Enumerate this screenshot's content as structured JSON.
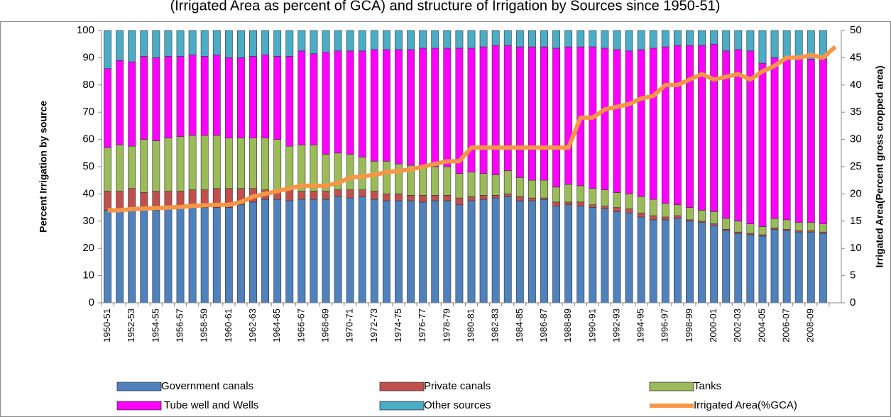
{
  "chart_data": {
    "type": "stacked_bar_line",
    "title": "(Irrigated Area as percent of GCA) and structure of Irrigation by Sources since 1950-51)",
    "y_label": "Percent Irrigation by source",
    "y2_label": "Irrigated Area(Percent gross cropped area)",
    "categories": [
      "1950-51",
      null,
      "1952-53",
      null,
      "1954-55",
      null,
      "1956-57",
      null,
      "1958-59",
      null,
      "1960-61",
      null,
      "1962-63",
      null,
      "1964-65",
      null,
      "1966-67",
      null,
      "1968-69",
      null,
      "1970-71",
      null,
      "1972-73",
      null,
      "1974-75",
      null,
      "1976-77",
      null,
      "1978-79",
      null,
      "1980-81",
      null,
      "1982-83",
      null,
      "1984-85",
      null,
      "1986-87",
      null,
      "1988-89",
      null,
      "1990-91",
      null,
      "1992-93",
      null,
      "1994-95",
      null,
      "1996-97",
      null,
      "1998-99",
      null,
      "2000-01",
      null,
      "2002-03",
      null,
      "2004-05",
      null,
      "2006-07",
      null,
      "2008-09",
      null,
      null
    ],
    "ylim": [
      0,
      100
    ],
    "yticks": [
      0,
      10,
      20,
      30,
      40,
      50,
      60,
      70,
      80,
      90,
      100
    ],
    "y2lim": [
      0,
      50
    ],
    "y2ticks": [
      0,
      5,
      10,
      15,
      20,
      25,
      30,
      35,
      40,
      45,
      50
    ],
    "series": [
      {
        "name": "Government canals",
        "color": "#4f81bd",
        "values": [
          34,
          34,
          34,
          34,
          34,
          35,
          35,
          35,
          35,
          35,
          35,
          36,
          37,
          38,
          38,
          37.5,
          38,
          38,
          38,
          39,
          38.5,
          39,
          38,
          37.5,
          37.5,
          37.5,
          37,
          37.5,
          37.5,
          36,
          37.5,
          38,
          38.5,
          39,
          37.5,
          37.5,
          38,
          35.5,
          36,
          35.5,
          35,
          34.5,
          33.5,
          33,
          31.5,
          30.5,
          30.5,
          31,
          30,
          29.5,
          28.5,
          26.5,
          25.5,
          25,
          24.5,
          27,
          26.5,
          26,
          26,
          25.5,
          null
        ]
      },
      {
        "name": "Private canals",
        "color": "#c0504d",
        "values": [
          7,
          7,
          8,
          6.5,
          7,
          6,
          6,
          6.5,
          6.5,
          7,
          7,
          6,
          5,
          3.5,
          3.5,
          4,
          3,
          3,
          3,
          2.5,
          3,
          2.5,
          3,
          2.5,
          2.5,
          2,
          2.5,
          2,
          2,
          2.5,
          1.5,
          1.5,
          1,
          1,
          1.5,
          1,
          0.5,
          1.5,
          1,
          1.5,
          1,
          1,
          1.5,
          1.5,
          1.5,
          1.5,
          1,
          1,
          0.5,
          0.5,
          0.5,
          0.5,
          0.5,
          0.5,
          0.5,
          0.5,
          0.5,
          0.5,
          0.5,
          0.5,
          null
        ]
      },
      {
        "name": "Tanks",
        "color": "#9bbb59",
        "values": [
          16,
          17,
          15.5,
          19.5,
          18.5,
          19.5,
          20,
          20,
          20,
          19.5,
          18.5,
          18.5,
          18.5,
          19,
          18.5,
          16,
          17,
          17,
          13.5,
          13.5,
          13,
          12,
          11,
          12,
          11,
          11,
          10.5,
          10.5,
          10.5,
          9,
          9,
          8,
          7.5,
          8.5,
          7,
          6.5,
          6.5,
          5.5,
          6.5,
          6,
          6,
          6,
          5.5,
          5.5,
          6,
          6,
          5,
          4,
          4.5,
          4,
          4.5,
          4,
          4,
          3.5,
          3,
          3.5,
          3.5,
          3,
          3,
          3,
          null
        ]
      },
      {
        "name": " Tube well and Wells",
        "color": "#ff00ff",
        "values": [
          29,
          31,
          31,
          30.5,
          30.5,
          30,
          29.5,
          29.5,
          29,
          29.5,
          29.5,
          29.5,
          30,
          30.5,
          30.5,
          33,
          34.5,
          33.5,
          37.5,
          37.5,
          38,
          39,
          41,
          41,
          42,
          42.5,
          43.5,
          43.5,
          43.5,
          46,
          45.5,
          46.5,
          47.5,
          46,
          48,
          49,
          49,
          51,
          50.5,
          51,
          52,
          52,
          52.5,
          52.5,
          54,
          55.5,
          57.5,
          58.5,
          59.5,
          60.5,
          61.5,
          61.5,
          63,
          63.5,
          60,
          59,
          59,
          60,
          60,
          60.5,
          null
        ]
      },
      {
        "name": "Other sources",
        "color": "#4bacc6",
        "values": [
          14,
          11,
          11.5,
          9.5,
          10,
          9.5,
          9.5,
          9,
          9.5,
          9,
          10,
          10,
          9.5,
          9,
          9.5,
          9.5,
          7.5,
          8.5,
          8,
          7.5,
          7.5,
          7.5,
          7,
          7,
          7,
          7,
          6.5,
          6.5,
          6.5,
          6.5,
          6.5,
          6,
          5.5,
          5.5,
          6,
          6,
          6,
          6.5,
          6,
          6,
          6,
          6.5,
          7,
          7.5,
          7,
          6.5,
          6,
          5.5,
          5.5,
          5.5,
          5,
          7.5,
          7,
          7.5,
          12,
          10,
          10.5,
          10.5,
          10.5,
          10.5,
          null
        ]
      },
      {
        "name": "Irrigated Area(%GCA)",
        "color": "#f79646",
        "axis": "y2",
        "values": [
          17,
          17,
          17.2,
          17.3,
          17.4,
          17.5,
          17.6,
          17.8,
          17.9,
          18,
          18,
          18.5,
          19.5,
          20,
          20.5,
          21,
          21.5,
          21.5,
          21.5,
          22,
          23,
          23.2,
          23.5,
          24,
          24.2,
          24.5,
          25,
          25.5,
          26,
          26,
          28.5,
          28.5,
          28.5,
          28.5,
          28.5,
          28.5,
          28.5,
          28.5,
          28.5,
          34,
          34,
          35.5,
          36,
          36.5,
          37.5,
          38,
          40,
          40,
          41,
          42,
          41,
          41.5,
          42,
          41,
          42.5,
          43.5,
          45,
          45,
          45.5,
          45,
          47
        ]
      }
    ]
  }
}
